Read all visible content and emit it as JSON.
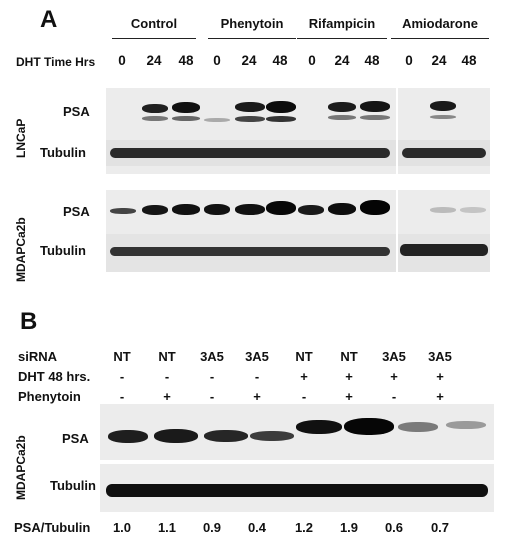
{
  "panel_a": {
    "letter": "A",
    "groups": [
      "Control",
      "Phenytoin",
      "Rifampicin",
      "Amiodarone"
    ],
    "time_label": "DHT Time Hrs",
    "timepoints": [
      "0",
      "24",
      "48",
      "0",
      "24",
      "48",
      "0",
      "24",
      "48",
      "0",
      "24",
      "48"
    ],
    "cell_lines": [
      "LNCaP",
      "MDAPCa2b"
    ],
    "psa_label": "PSA",
    "tubulin_label": "Tubulin"
  },
  "panel_b": {
    "letter": "B",
    "sirna_label": "siRNA",
    "sirna": [
      "NT",
      "NT",
      "3A5",
      "3A5",
      "NT",
      "NT",
      "3A5",
      "3A5"
    ],
    "dht_label": "DHT 48 hrs.",
    "dht": [
      "-",
      "-",
      "-",
      "-",
      "+",
      "+",
      "+",
      "+"
    ],
    "phenytoin_label": "Phenytoin",
    "phenytoin": [
      "-",
      "+",
      "-",
      "+",
      "-",
      "+",
      "-",
      "+"
    ],
    "cell_line": "MDAPCa2b",
    "psa_label": "PSA",
    "tubulin_label": "Tubulin",
    "ratio_label": "PSA/Tubulin",
    "ratios": [
      "1.0",
      "1.1",
      "0.9",
      "0.4",
      "1.2",
      "1.9",
      "0.6",
      "0.7"
    ]
  }
}
